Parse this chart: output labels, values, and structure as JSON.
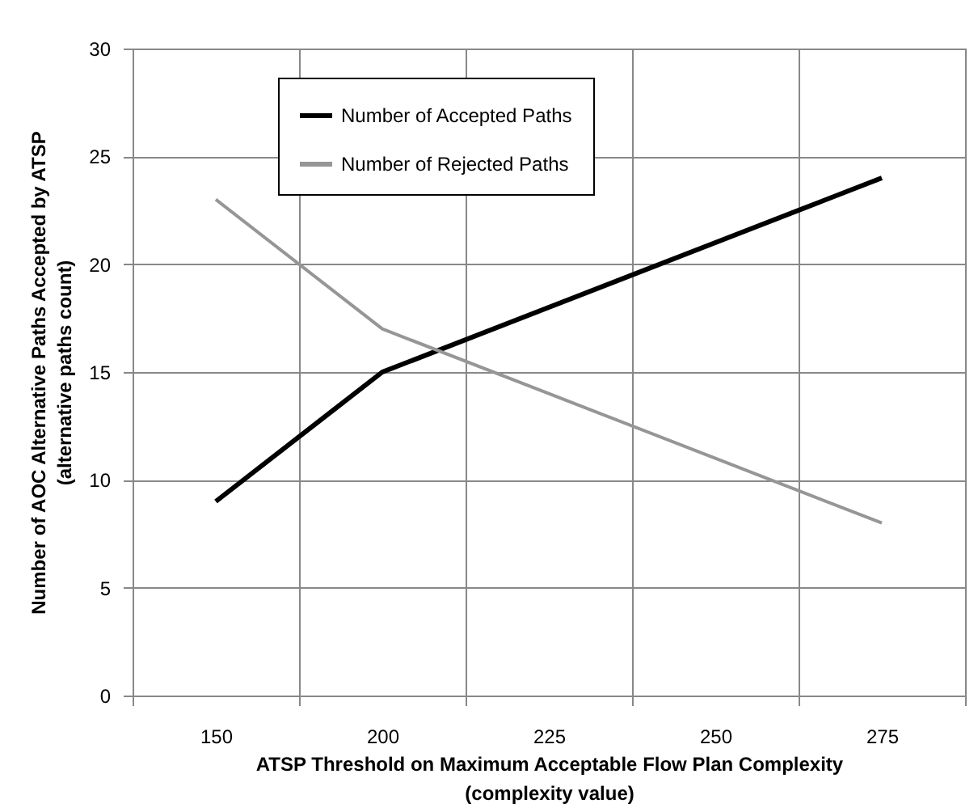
{
  "chart_data": {
    "type": "line",
    "xlabel": "ATSP Threshold on Maximum Acceptable Flow Plan Complexity\n(complexity value)",
    "ylabel": "Number of AOC Alternative Paths Accepted by ATSP\n(alternative paths count)",
    "categories": [
      "150",
      "200",
      "225",
      "250",
      "275"
    ],
    "series": [
      {
        "name": "Number of Accepted Paths",
        "color": "#000000",
        "values": [
          9,
          15,
          18,
          21,
          24
        ]
      },
      {
        "name": "Number of Rejected Paths",
        "color": "#969696",
        "values": [
          23,
          17,
          14,
          11,
          8
        ]
      }
    ],
    "ylim": [
      0,
      30
    ],
    "yticks": [
      0,
      5,
      10,
      15,
      20,
      25,
      30
    ],
    "grid": true,
    "legend": "top left",
    "marker": "none",
    "line_style": "solid"
  }
}
